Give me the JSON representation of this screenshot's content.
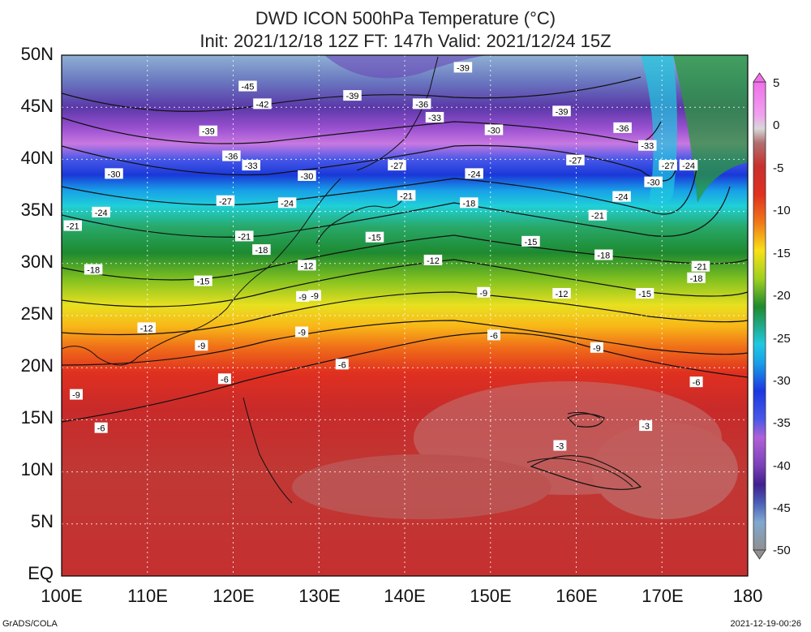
{
  "title": {
    "line1": "DWD ICON 500hPa Temperature (°C)",
    "line2": "Init: 2021/12/18 12Z  FT: 147h  Valid: 2021/12/24 15Z"
  },
  "map": {
    "lat_range": [
      0,
      50
    ],
    "lon_range": [
      100,
      180
    ],
    "lat_labels": [
      "50N",
      "45N",
      "40N",
      "35N",
      "30N",
      "25N",
      "20N",
      "15N",
      "10N",
      "5N",
      "EQ"
    ],
    "lon_labels": [
      "100E",
      "110E",
      "120E",
      "130E",
      "140E",
      "150E",
      "160E",
      "170E",
      "180"
    ],
    "gridlines": "dotted"
  },
  "colorbar": {
    "labels": [
      "5",
      "0",
      "-5",
      "-10",
      "-15",
      "-20",
      "-25",
      "-30",
      "-35",
      "-40",
      "-45",
      "-50"
    ],
    "colors": [
      "#f06fe8",
      "#d8d8d8",
      "#c8302e",
      "#f07818",
      "#f8e018",
      "#1f8a2c",
      "#20c8e0",
      "#1a38e0",
      "#b060d8",
      "#402090",
      "#4a60b8",
      "#909090"
    ]
  },
  "contour_labels": [
    {
      "text": "-39",
      "lon": 146.8,
      "lat": 48.8
    },
    {
      "text": "-45",
      "lon": 121.7,
      "lat": 47.0
    },
    {
      "text": "-39",
      "lon": 133.9,
      "lat": 46.1
    },
    {
      "text": "-42",
      "lon": 123.4,
      "lat": 45.3
    },
    {
      "text": "-36",
      "lon": 142.0,
      "lat": 45.3
    },
    {
      "text": "-39",
      "lon": 158.3,
      "lat": 44.6
    },
    {
      "text": "-33",
      "lon": 143.5,
      "lat": 44.0
    },
    {
      "text": "-36",
      "lon": 165.4,
      "lat": 43.0
    },
    {
      "text": "-30",
      "lon": 150.4,
      "lat": 42.8
    },
    {
      "text": "-39",
      "lon": 117.1,
      "lat": 42.7
    },
    {
      "text": "-33",
      "lon": 168.3,
      "lat": 41.3
    },
    {
      "text": "-36",
      "lon": 119.8,
      "lat": 40.3
    },
    {
      "text": "-27",
      "lon": 159.9,
      "lat": 39.9
    },
    {
      "text": "-33",
      "lon": 122.1,
      "lat": 39.4
    },
    {
      "text": "-27",
      "lon": 139.1,
      "lat": 39.4
    },
    {
      "text": "-27",
      "lon": 170.7,
      "lat": 39.4
    },
    {
      "text": "-24",
      "lon": 173.1,
      "lat": 39.4
    },
    {
      "text": "-30",
      "lon": 106.1,
      "lat": 38.6
    },
    {
      "text": "-30",
      "lon": 128.6,
      "lat": 38.4
    },
    {
      "text": "-24",
      "lon": 148.1,
      "lat": 38.6
    },
    {
      "text": "-30",
      "lon": 169.0,
      "lat": 37.8
    },
    {
      "text": "-21",
      "lon": 140.2,
      "lat": 36.5
    },
    {
      "text": "-24",
      "lon": 165.3,
      "lat": 36.4
    },
    {
      "text": "-27",
      "lon": 119.1,
      "lat": 36.0
    },
    {
      "text": "-24",
      "lon": 126.3,
      "lat": 35.8
    },
    {
      "text": "-18",
      "lon": 147.5,
      "lat": 35.8
    },
    {
      "text": "-24",
      "lon": 104.6,
      "lat": 34.9
    },
    {
      "text": "-21",
      "lon": 162.5,
      "lat": 34.6
    },
    {
      "text": "-21",
      "lon": 101.3,
      "lat": 33.6
    },
    {
      "text": "-21",
      "lon": 121.3,
      "lat": 32.6
    },
    {
      "text": "-15",
      "lon": 136.5,
      "lat": 32.5
    },
    {
      "text": "-15",
      "lon": 154.7,
      "lat": 32.1
    },
    {
      "text": "-18",
      "lon": 123.3,
      "lat": 31.3
    },
    {
      "text": "-18",
      "lon": 163.2,
      "lat": 30.8
    },
    {
      "text": "-12",
      "lon": 143.3,
      "lat": 30.3
    },
    {
      "text": "-12",
      "lon": 128.6,
      "lat": 29.8
    },
    {
      "text": "-21",
      "lon": 174.5,
      "lat": 29.7
    },
    {
      "text": "-18",
      "lon": 103.7,
      "lat": 29.4
    },
    {
      "text": "-18",
      "lon": 174.0,
      "lat": 28.6
    },
    {
      "text": "-15",
      "lon": 116.5,
      "lat": 28.3
    },
    {
      "text": "-9",
      "lon": 149.2,
      "lat": 27.2
    },
    {
      "text": "-12",
      "lon": 158.3,
      "lat": 27.1
    },
    {
      "text": "-15",
      "lon": 168.0,
      "lat": 27.1
    },
    {
      "text": "-9",
      "lon": 128.1,
      "lat": 26.8
    },
    {
      "text": "-9",
      "lon": 129.5,
      "lat": 26.9
    },
    {
      "text": "-12",
      "lon": 109.9,
      "lat": 23.8
    },
    {
      "text": "-9",
      "lon": 128.0,
      "lat": 23.4
    },
    {
      "text": "-6",
      "lon": 150.4,
      "lat": 23.1
    },
    {
      "text": "-9",
      "lon": 116.3,
      "lat": 22.1
    },
    {
      "text": "-9",
      "lon": 162.4,
      "lat": 21.9
    },
    {
      "text": "-6",
      "lon": 132.7,
      "lat": 20.3
    },
    {
      "text": "-6",
      "lon": 119.0,
      "lat": 18.9
    },
    {
      "text": "-6",
      "lon": 174.0,
      "lat": 18.6
    },
    {
      "text": "-9",
      "lon": 101.7,
      "lat": 17.4
    },
    {
      "text": "-3",
      "lon": 168.1,
      "lat": 14.4
    },
    {
      "text": "-6",
      "lon": 104.6,
      "lat": 14.2
    },
    {
      "text": "-3",
      "lon": 158.1,
      "lat": 12.5
    }
  ],
  "footer": {
    "left": "GrADS/COLA",
    "right": "2021-12-19-00:26"
  }
}
